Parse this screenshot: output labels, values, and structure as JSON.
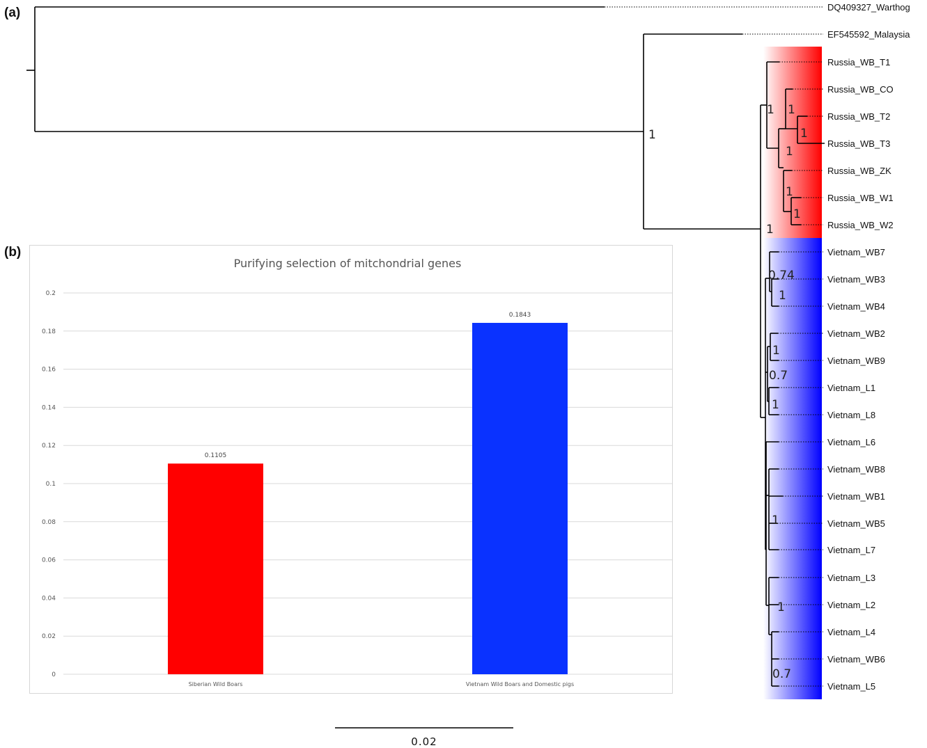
{
  "panels": {
    "a": "(a)",
    "b": "(b)"
  },
  "tree": {
    "outgroups": [
      "DQ409327_Warthog",
      "EF545592_Malaysia"
    ],
    "russia_tips": [
      "Russia_WB_T1",
      "Russia_WB_CO",
      "Russia_WB_T2",
      "Russia_WB_T3",
      "Russia_WB_ZK",
      "Russia_WB_W1",
      "Russia_WB_W2"
    ],
    "vietnam_tips": [
      "Vietnam_WB7",
      "Vietnam_WB3",
      "Vietnam_WB4",
      "Vietnam_WB2",
      "Vietnam_WB9",
      "Vietnam_L1",
      "Vietnam_L8",
      "Vietnam_L6",
      "Vietnam_WB8",
      "Vietnam_WB1",
      "Vietnam_WB5",
      "Vietnam_L7",
      "Vietnam_L3",
      "Vietnam_L2",
      "Vietnam_L4",
      "Vietnam_WB6",
      "Vietnam_L5"
    ],
    "supports": [
      "1",
      "1",
      "1",
      "1",
      "1",
      "1",
      "1",
      "1",
      "0.74",
      "1",
      "1",
      "0.7",
      "1",
      "1",
      "1",
      "0.7"
    ],
    "colors": {
      "russia": "#ff0000",
      "vietnam": "#0000ff"
    },
    "scale_bar": {
      "label": "0.02"
    }
  },
  "chart_data": {
    "type": "bar",
    "title": "Purifying selection of mitchondrial genes",
    "categories": [
      "Siberian Wild Boars",
      "Vietnam Wild Boars and Domestic pigs"
    ],
    "values": [
      0.1105,
      0.1843
    ],
    "data_labels": [
      "0.1105",
      "0.1843"
    ],
    "colors": [
      "#ff0000",
      "#0a32ff"
    ],
    "ylim": [
      0,
      0.2
    ],
    "yticks": [
      "0",
      "0.02",
      "0.04",
      "0.06",
      "0.08",
      "0.1",
      "0.12",
      "0.14",
      "0.16",
      "0.18",
      "0.2"
    ],
    "grid": true,
    "xlabel": "",
    "ylabel": ""
  }
}
